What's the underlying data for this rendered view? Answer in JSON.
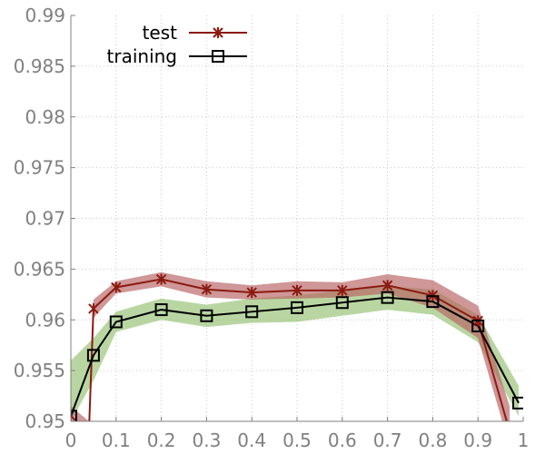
{
  "chart_data": {
    "type": "line",
    "title": "",
    "xlabel": "",
    "ylabel": "",
    "xlim": [
      0,
      1
    ],
    "ylim": [
      0.95,
      0.99
    ],
    "x_ticks": [
      "0",
      "0.1",
      "0.2",
      "0.3",
      "0.4",
      "0.5",
      "0.6",
      "0.7",
      "0.8",
      "0.9",
      "1"
    ],
    "y_ticks": [
      "0.95",
      "0.955",
      "0.96",
      "0.965",
      "0.97",
      "0.975",
      "0.98",
      "0.985",
      "0.99"
    ],
    "grid": true,
    "legend_position": "top-left",
    "series": [
      {
        "name": "test",
        "marker": "x",
        "color": "#8b1a10",
        "band_color": "#b56060",
        "x": [
          0.0,
          0.04,
          0.05,
          0.1,
          0.2,
          0.3,
          0.4,
          0.5,
          0.6,
          0.7,
          0.8,
          0.9,
          0.97
        ],
        "y": [
          0.9505,
          0.949,
          0.9611,
          0.9632,
          0.964,
          0.963,
          0.9627,
          0.9629,
          0.9629,
          0.9634,
          0.9624,
          0.9599,
          0.949
        ],
        "band_low": [
          0.9495,
          0.948,
          0.9602,
          0.9626,
          0.9633,
          0.9622,
          0.962,
          0.9621,
          0.9622,
          0.9626,
          0.9612,
          0.9582,
          0.9475
        ],
        "band_high": [
          0.9515,
          0.95,
          0.962,
          0.9638,
          0.9647,
          0.9638,
          0.9634,
          0.9638,
          0.9637,
          0.9645,
          0.9639,
          0.9614,
          0.9515
        ],
        "marker_x": [
          0.05,
          0.1,
          0.2,
          0.3,
          0.4,
          0.5,
          0.6,
          0.7,
          0.8,
          0.9
        ],
        "marker_y": [
          0.9611,
          0.9632,
          0.964,
          0.963,
          0.9627,
          0.9629,
          0.9629,
          0.9634,
          0.9624,
          0.9599
        ]
      },
      {
        "name": "training",
        "marker": "square",
        "color": "#000000",
        "band_color": "#94c070",
        "x": [
          0.0,
          0.05,
          0.1,
          0.2,
          0.3,
          0.4,
          0.5,
          0.6,
          0.7,
          0.8,
          0.9,
          0.99
        ],
        "y": [
          0.9505,
          0.9565,
          0.9598,
          0.961,
          0.9604,
          0.9608,
          0.9612,
          0.9617,
          0.9622,
          0.9618,
          0.9594,
          0.9518
        ],
        "band_low": [
          0.95,
          0.954,
          0.9588,
          0.96,
          0.9593,
          0.9597,
          0.9598,
          0.9604,
          0.961,
          0.9605,
          0.9578,
          0.9505
        ],
        "band_high": [
          0.956,
          0.9582,
          0.9608,
          0.9621,
          0.9615,
          0.9621,
          0.9624,
          0.9629,
          0.9633,
          0.963,
          0.9605,
          0.9535
        ],
        "marker_x": [
          0.0,
          0.05,
          0.1,
          0.2,
          0.3,
          0.4,
          0.5,
          0.6,
          0.7,
          0.8,
          0.9,
          0.99
        ],
        "marker_y": [
          0.9505,
          0.9565,
          0.9598,
          0.961,
          0.9604,
          0.9608,
          0.9612,
          0.9617,
          0.9622,
          0.9618,
          0.9594,
          0.9518
        ]
      }
    ]
  }
}
